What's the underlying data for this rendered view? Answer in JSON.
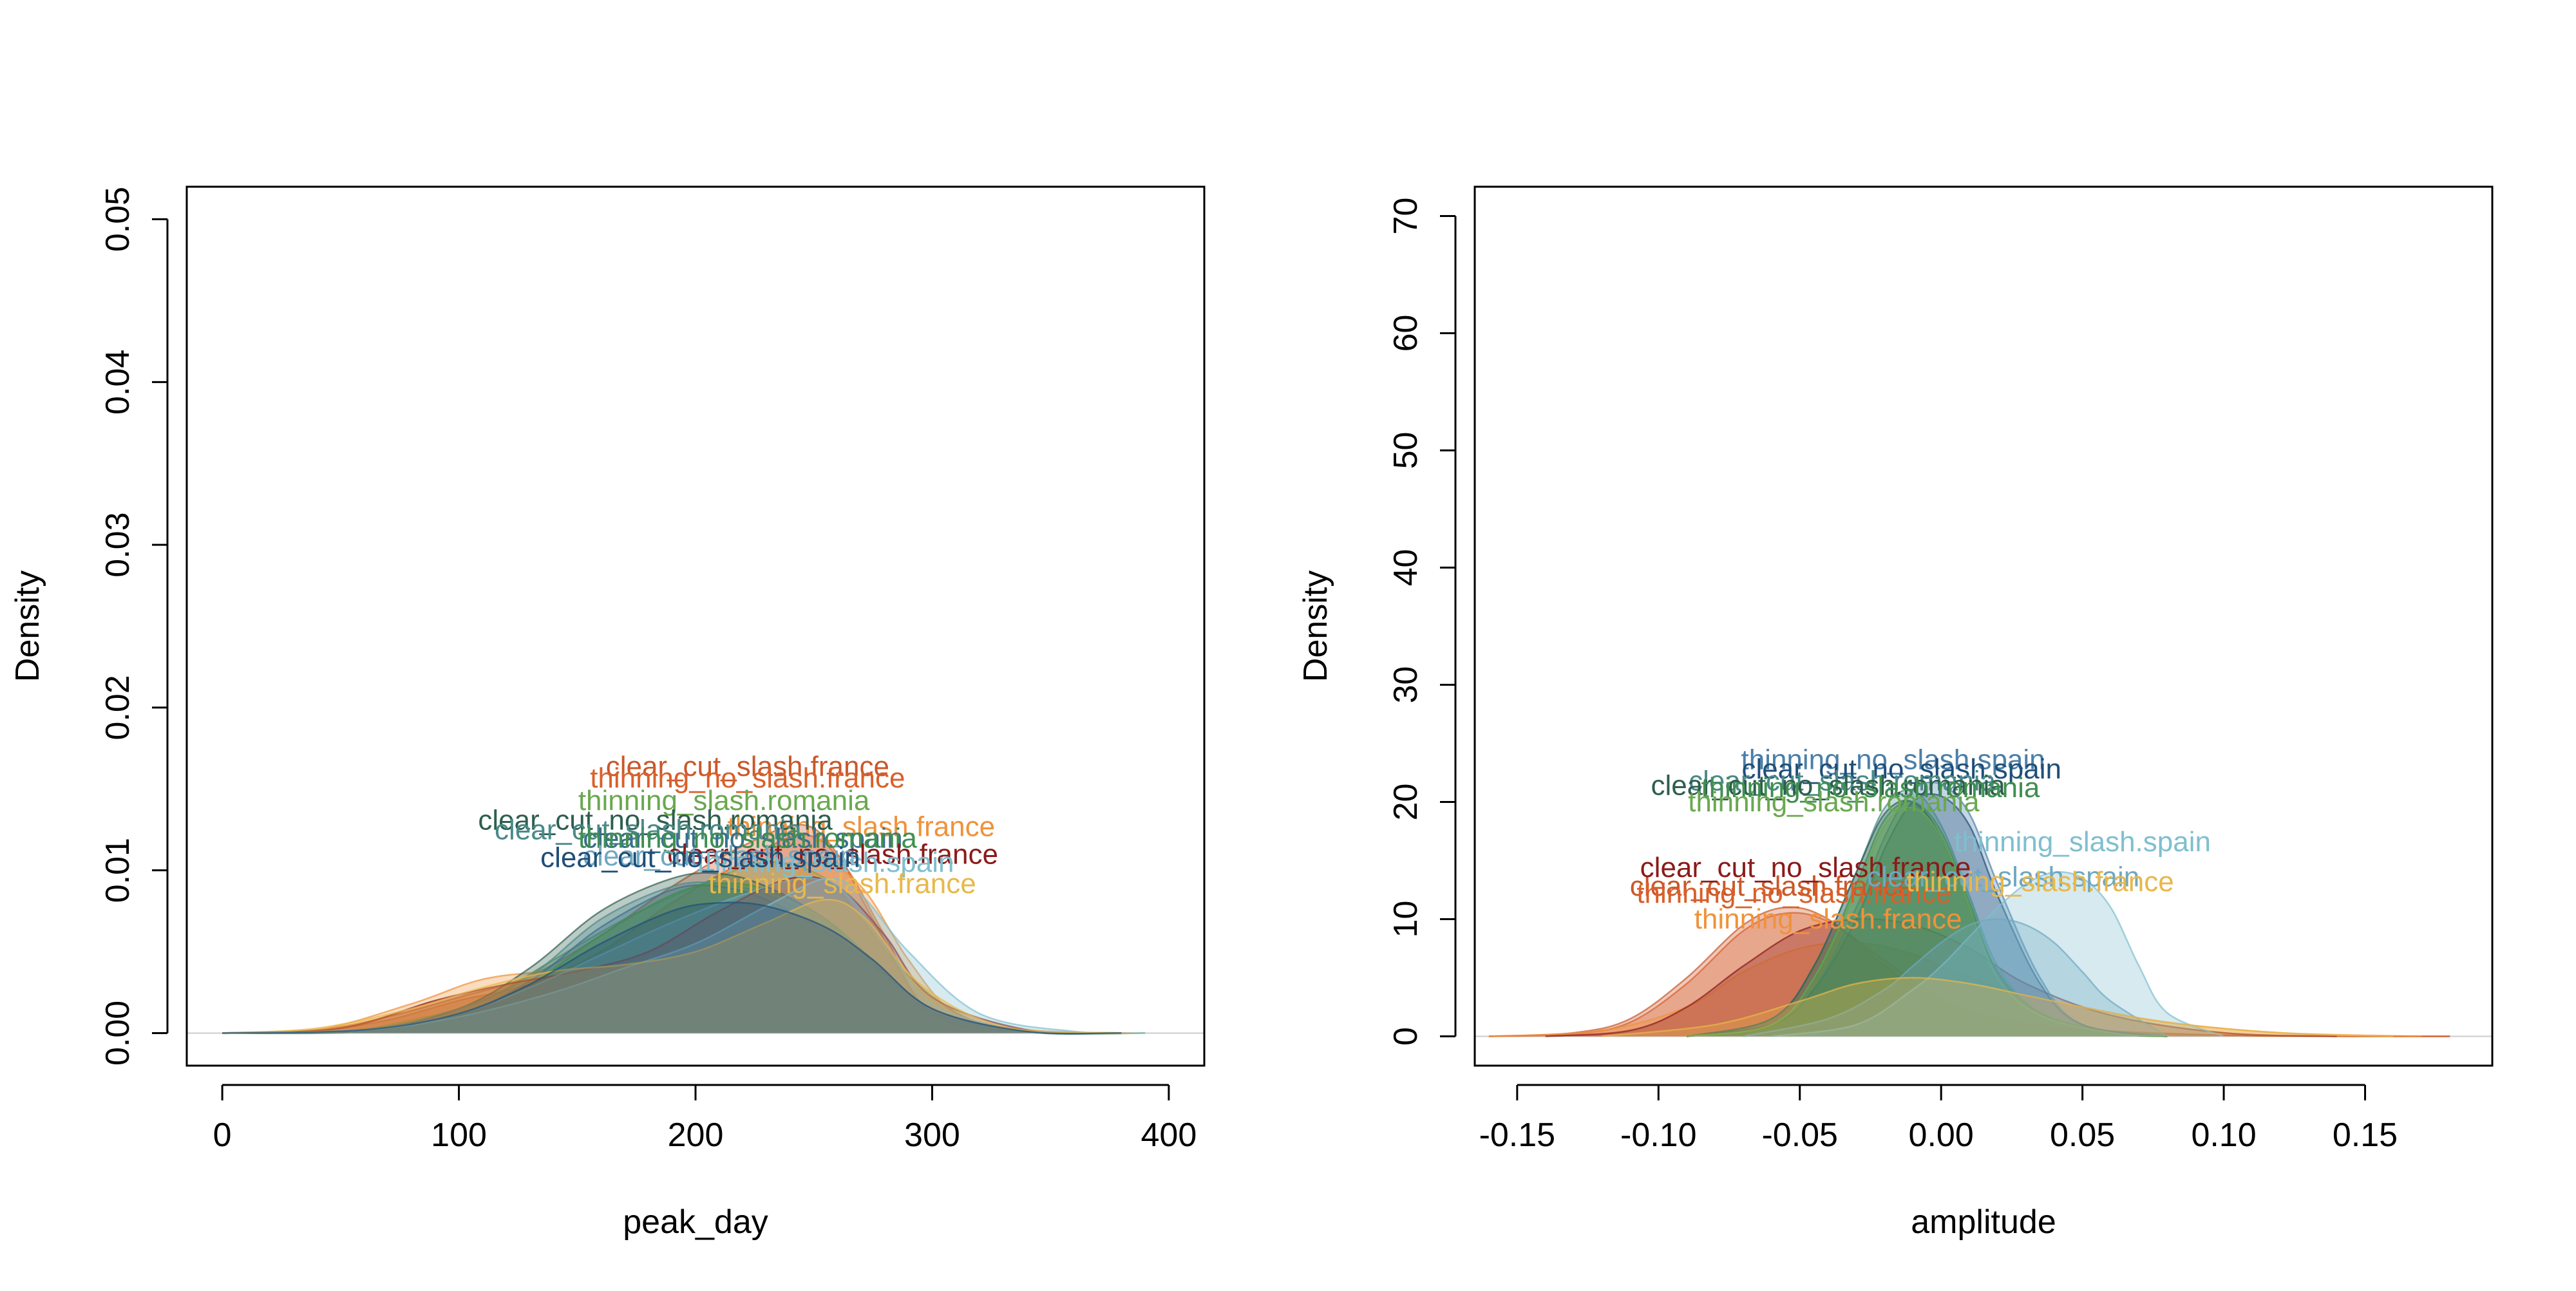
{
  "chart_data": [
    {
      "type": "area",
      "title": "",
      "xlabel": "peak_day",
      "ylabel": "Density",
      "xlim": [
        -15,
        415
      ],
      "ylim": [
        -0.002,
        0.052
      ],
      "xticks": [
        0,
        100,
        200,
        300,
        400
      ],
      "xtick_labels": [
        "0",
        "100",
        "200",
        "300",
        "400"
      ],
      "yticks": [
        0.0,
        0.01,
        0.02,
        0.03,
        0.04,
        0.05
      ],
      "ytick_labels": [
        "0.00",
        "0.01",
        "0.02",
        "0.03",
        "0.04",
        "0.05"
      ],
      "grid": false,
      "legend": "none",
      "series": [
        {
          "name": "clear_cut_slash.france",
          "color": "#c9582a",
          "label_xy": [
            222,
            0.0158
          ],
          "x": [
            0,
            40,
            70,
            100,
            130,
            160,
            190,
            220,
            245,
            260,
            275,
            300,
            340,
            380
          ],
          "y": [
            0,
            0.0002,
            0.001,
            0.0022,
            0.0035,
            0.006,
            0.009,
            0.0115,
            0.0128,
            0.011,
            0.007,
            0.0012,
            0.0001,
            0
          ]
        },
        {
          "name": "thinning_no_slash.france",
          "color": "#d9602a",
          "label_xy": [
            222,
            0.0151
          ],
          "x": [
            0,
            40,
            70,
            100,
            130,
            160,
            190,
            220,
            245,
            262,
            280,
            300,
            340,
            380
          ],
          "y": [
            0,
            0.0002,
            0.0008,
            0.002,
            0.003,
            0.005,
            0.008,
            0.0105,
            0.0122,
            0.0105,
            0.006,
            0.0012,
            0.0001,
            0
          ]
        },
        {
          "name": "thinning_slash.romania",
          "color": "#6aa84f",
          "label_xy": [
            212,
            0.0137
          ],
          "x": [
            0,
            50,
            80,
            110,
            140,
            170,
            200,
            230,
            255,
            270,
            290,
            320,
            360,
            390
          ],
          "y": [
            0,
            0.0001,
            0.0008,
            0.002,
            0.0045,
            0.007,
            0.009,
            0.0105,
            0.0095,
            0.007,
            0.0035,
            0.0006,
            0,
            0
          ]
        },
        {
          "name": "thinning_slash.france",
          "color": "#f0923a",
          "label_xy": [
            270,
            0.0121
          ],
          "x": [
            0,
            40,
            80,
            110,
            140,
            170,
            200,
            230,
            250,
            270,
            290,
            310,
            340,
            385
          ],
          "y": [
            0,
            0.0002,
            0.0018,
            0.0033,
            0.0038,
            0.004,
            0.005,
            0.0075,
            0.0105,
            0.009,
            0.0045,
            0.0012,
            0.0002,
            0
          ]
        },
        {
          "name": "clear_cut_no_slash.romania",
          "color": "#2e5e4e",
          "label_xy": [
            183,
            0.0125
          ],
          "x": [
            0,
            60,
            100,
            130,
            160,
            190,
            210,
            230,
            255,
            270,
            300,
            340,
            380
          ],
          "y": [
            0,
            0.0002,
            0.0015,
            0.004,
            0.0075,
            0.0095,
            0.0098,
            0.009,
            0.007,
            0.005,
            0.0015,
            0.0001,
            0
          ]
        },
        {
          "name": "clear_cut_slash.romania",
          "color": "#4a8a8a",
          "label_xy": [
            180,
            0.0119
          ],
          "x": [
            0,
            60,
            100,
            130,
            160,
            190,
            210,
            230,
            255,
            275,
            300,
            340,
            380
          ],
          "y": [
            0,
            0.0002,
            0.0015,
            0.0035,
            0.007,
            0.009,
            0.0092,
            0.0085,
            0.0068,
            0.0045,
            0.0015,
            0.0001,
            0
          ]
        },
        {
          "name": "clear_cut_no_slash.spain",
          "color": "#3a6f8f",
          "label_xy": [
            220,
            0.0114
          ],
          "x": [
            0,
            60,
            100,
            130,
            160,
            190,
            210,
            230,
            255,
            275,
            300,
            340,
            380
          ],
          "y": [
            0,
            0.0002,
            0.0012,
            0.0032,
            0.0065,
            0.0088,
            0.009,
            0.0082,
            0.0062,
            0.0042,
            0.0013,
            0.0001,
            0
          ]
        },
        {
          "name": "thinning_no_slash.romania",
          "color": "#3f8f4f",
          "label_xy": [
            222,
            0.0114
          ],
          "x": [
            0,
            60,
            100,
            130,
            160,
            190,
            210,
            230,
            255,
            275,
            300,
            340,
            380
          ],
          "y": [
            0,
            0.0001,
            0.0012,
            0.003,
            0.006,
            0.0085,
            0.0092,
            0.0088,
            0.007,
            0.0045,
            0.0012,
            0.0001,
            0
          ]
        },
        {
          "name": "clear_cut_no_slash.france",
          "color": "#8b1a1a",
          "label_xy": [
            258,
            0.0104
          ],
          "x": [
            0,
            50,
            90,
            120,
            150,
            180,
            210,
            240,
            260,
            280,
            300,
            340,
            380
          ],
          "y": [
            0,
            0.0003,
            0.002,
            0.003,
            0.0038,
            0.005,
            0.0075,
            0.0095,
            0.009,
            0.006,
            0.0022,
            0.0002,
            0
          ]
        },
        {
          "name": "clear_cut_slash.spain",
          "color": "#6fa8c0",
          "label_xy": [
            210,
            0.0103
          ],
          "x": [
            0,
            60,
            100,
            130,
            160,
            190,
            220,
            245,
            262,
            280,
            300,
            340,
            380
          ],
          "y": [
            0,
            0.0002,
            0.0012,
            0.0028,
            0.0048,
            0.0068,
            0.0085,
            0.0095,
            0.0088,
            0.0055,
            0.0018,
            0.0001,
            0
          ]
        },
        {
          "name": "thinning_slash.spain",
          "color": "#7fbfcf",
          "label_xy": [
            255,
            0.0099
          ],
          "x": [
            0,
            60,
            100,
            140,
            170,
            200,
            230,
            255,
            270,
            290,
            320,
            360,
            390
          ],
          "y": [
            0,
            0.0002,
            0.001,
            0.0025,
            0.004,
            0.0055,
            0.0078,
            0.0095,
            0.0085,
            0.005,
            0.0012,
            0.0001,
            0
          ]
        },
        {
          "name": "thinning_slash.france",
          "color": "#e8b84a",
          "label_xy": [
            262,
            0.0086
          ],
          "x": [
            0,
            40,
            80,
            110,
            140,
            170,
            200,
            230,
            255,
            272,
            295,
            330,
            380
          ],
          "y": [
            0,
            0.0003,
            0.0015,
            0.0028,
            0.0038,
            0.0042,
            0.005,
            0.0068,
            0.0082,
            0.007,
            0.003,
            0.0004,
            0
          ]
        },
        {
          "name": "clear_cut_no_slash.spain",
          "color": "#1f4e79",
          "label_xy": [
            202,
            0.0102
          ],
          "x": [
            0,
            60,
            100,
            130,
            160,
            190,
            210,
            230,
            255,
            275,
            300,
            340,
            380
          ],
          "y": [
            0,
            0.0002,
            0.0012,
            0.003,
            0.0055,
            0.0075,
            0.008,
            0.0078,
            0.0065,
            0.0045,
            0.0015,
            0.0001,
            0
          ]
        }
      ]
    },
    {
      "type": "area",
      "title": "",
      "xlabel": "amplitude",
      "ylabel": "Density",
      "xlim": [
        -0.165,
        0.195
      ],
      "ylim": [
        -2.5,
        72.5
      ],
      "xticks": [
        -0.15,
        -0.1,
        -0.05,
        0.0,
        0.05,
        0.1,
        0.15
      ],
      "xtick_labels": [
        "-0.15",
        "-0.10",
        "-0.05",
        "0.00",
        "0.05",
        "0.10",
        "0.15"
      ],
      "yticks": [
        0,
        10,
        20,
        30,
        40,
        50,
        60,
        70
      ],
      "ytick_labels": [
        "0",
        "10",
        "20",
        "30",
        "40",
        "50",
        "60",
        "70"
      ],
      "grid": false,
      "legend": "none",
      "series": [
        {
          "name": "clear_cut_slash.france",
          "color": "#c9582a",
          "label_xy": [
            -0.06,
            12.0
          ],
          "x": [
            -0.16,
            -0.13,
            -0.11,
            -0.09,
            -0.07,
            -0.055,
            -0.04,
            -0.02,
            0.0,
            0.02,
            0.05,
            0.1,
            0.15,
            0.18
          ],
          "y": [
            0,
            0.3,
            1.5,
            5,
            9.5,
            11,
            10,
            6,
            3,
            1.5,
            0.6,
            0.1,
            0,
            0
          ]
        },
        {
          "name": "thinning_no_slash.france",
          "color": "#d9602a",
          "label_xy": [
            -0.052,
            11.4
          ],
          "x": [
            -0.16,
            -0.13,
            -0.11,
            -0.09,
            -0.07,
            -0.055,
            -0.04,
            -0.02,
            0.0,
            0.02,
            0.05,
            0.1,
            0.15,
            0.18
          ],
          "y": [
            0,
            0.2,
            1.2,
            4.5,
            9,
            10.5,
            9.8,
            6.5,
            3.2,
            1.5,
            0.5,
            0.1,
            0,
            0
          ]
        },
        {
          "name": "thinning_slash.france",
          "color": "#f0923a",
          "label_xy": [
            -0.04,
            9.2
          ],
          "x": [
            -0.16,
            -0.12,
            -0.09,
            -0.07,
            -0.05,
            -0.03,
            -0.01,
            0.01,
            0.03,
            0.05,
            0.08,
            0.12,
            0.17
          ],
          "y": [
            0,
            0.5,
            2.5,
            5.5,
            7.5,
            8,
            7,
            5,
            3.5,
            2.5,
            1.2,
            0.3,
            0
          ]
        },
        {
          "name": "clear_cut_no_slash.france",
          "color": "#8b1a1a",
          "label_xy": [
            -0.048,
            13.6
          ],
          "x": [
            -0.14,
            -0.11,
            -0.09,
            -0.07,
            -0.05,
            -0.03,
            -0.01,
            0.01,
            0.03,
            0.06,
            0.1,
            0.14
          ],
          "y": [
            0,
            0.5,
            2.5,
            6,
            9,
            10,
            9.5,
            7.5,
            4.5,
            1.8,
            0.3,
            0
          ]
        },
        {
          "name": "thinning_no_slash.spain",
          "color": "#4a7fa8",
          "label_xy": [
            -0.017,
            22.8
          ],
          "x": [
            -0.09,
            -0.06,
            -0.045,
            -0.03,
            -0.02,
            -0.01,
            0.0,
            0.01,
            0.02,
            0.035,
            0.05,
            0.08
          ],
          "y": [
            0,
            1,
            4,
            11,
            17,
            21,
            21.5,
            19,
            13,
            5,
            1,
            0
          ]
        },
        {
          "name": "clear_cut_no_slash.spain",
          "color": "#1f4e79",
          "label_xy": [
            -0.014,
            22.0
          ],
          "x": [
            -0.09,
            -0.06,
            -0.045,
            -0.03,
            -0.02,
            -0.01,
            0.0,
            0.01,
            0.02,
            0.035,
            0.05,
            0.08
          ],
          "y": [
            0,
            1,
            4,
            10,
            16,
            20,
            20.5,
            18,
            12,
            4.5,
            1,
            0
          ]
        },
        {
          "name": "clear_cut_slash.romania",
          "color": "#4a8a8a",
          "label_xy": [
            -0.035,
            21.0
          ],
          "x": [
            -0.09,
            -0.06,
            -0.045,
            -0.03,
            -0.02,
            -0.01,
            0.0,
            0.01,
            0.02,
            0.035,
            0.06,
            0.08
          ],
          "y": [
            0,
            1.5,
            6,
            14,
            19.5,
            21,
            18,
            12,
            6,
            2,
            0.3,
            0
          ]
        },
        {
          "name": "clear_cut_no_slash.romania",
          "color": "#2e5e4e",
          "label_xy": [
            -0.04,
            20.6
          ],
          "x": [
            -0.09,
            -0.06,
            -0.045,
            -0.03,
            -0.02,
            -0.01,
            0.0,
            0.01,
            0.02,
            0.035,
            0.06,
            0.08
          ],
          "y": [
            0,
            1.5,
            6,
            14,
            19,
            20,
            17,
            11,
            5.5,
            2,
            0.3,
            0
          ]
        },
        {
          "name": "thinning_no_slash.romania",
          "color": "#3f8f4f",
          "label_xy": [
            -0.025,
            20.4
          ],
          "x": [
            -0.09,
            -0.06,
            -0.045,
            -0.03,
            -0.02,
            -0.01,
            0.0,
            0.01,
            0.02,
            0.035,
            0.06,
            0.08
          ],
          "y": [
            0,
            1,
            5,
            13,
            18.5,
            20,
            17.5,
            11.5,
            5.5,
            2,
            0.3,
            0
          ]
        },
        {
          "name": "thinning_slash.romania",
          "color": "#6aa84f",
          "label_xy": [
            -0.038,
            19.2
          ],
          "x": [
            -0.09,
            -0.06,
            -0.045,
            -0.03,
            -0.02,
            -0.01,
            0.0,
            0.01,
            0.02,
            0.035,
            0.06,
            0.08
          ],
          "y": [
            0,
            1,
            5,
            12.5,
            18,
            19.5,
            17,
            11,
            5,
            1.8,
            0.3,
            0
          ]
        },
        {
          "name": "thinning_slash.spain",
          "color": "#7fbfcf",
          "label_xy": [
            0.05,
            15.8
          ],
          "x": [
            -0.06,
            -0.03,
            -0.01,
            0.0,
            0.01,
            0.02,
            0.03,
            0.04,
            0.05,
            0.06,
            0.07,
            0.08,
            0.1
          ],
          "y": [
            0,
            1,
            4,
            6,
            8.5,
            11,
            13,
            14,
            13.5,
            11,
            6,
            2,
            0
          ]
        },
        {
          "name": "clear_cut_slash.spain",
          "color": "#6fa8c0",
          "label_xy": [
            0.022,
            12.8
          ],
          "x": [
            -0.07,
            -0.04,
            -0.02,
            -0.01,
            0.0,
            0.01,
            0.02,
            0.03,
            0.04,
            0.05,
            0.06,
            0.08
          ],
          "y": [
            0,
            1.5,
            4,
            6,
            8,
            9.5,
            10,
            9.5,
            8,
            5.5,
            3,
            0
          ]
        },
        {
          "name": "thinning_slash.france",
          "color": "#e8b84a",
          "label_xy": [
            0.035,
            12.4
          ],
          "x": [
            -0.12,
            -0.08,
            -0.05,
            -0.03,
            -0.01,
            0.01,
            0.03,
            0.05,
            0.08,
            0.12,
            0.16
          ],
          "y": [
            0,
            1,
            3,
            4.5,
            5,
            4.5,
            3.5,
            2.5,
            1.2,
            0.3,
            0
          ]
        }
      ]
    }
  ]
}
